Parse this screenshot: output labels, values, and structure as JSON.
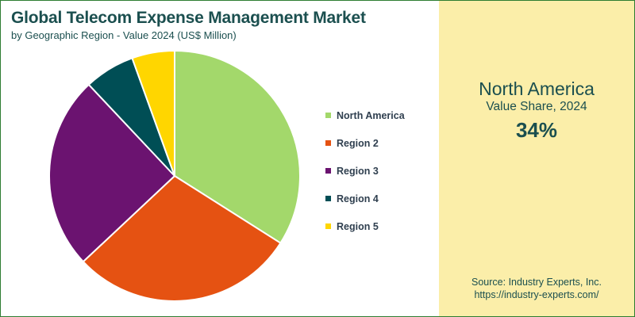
{
  "chart_data": {
    "type": "pie",
    "title": "Global Telecom Expense Management Market",
    "subtitle": "by Geographic Region - Value 2024 (US$ Million)",
    "categories": [
      "North America",
      "Region 2",
      "Region 3",
      "Region 4",
      "Region 5"
    ],
    "values": [
      34,
      29,
      25,
      6.5,
      5.5
    ],
    "colors": [
      "#a3d86b",
      "#e55212",
      "#6b1370",
      "#004e55",
      "#ffd600"
    ],
    "legend_position": "right"
  },
  "highlight": {
    "region": "North America",
    "label": "Value Share, 2024",
    "value": "34%"
  },
  "source": {
    "line1": "Source: Industry Experts, Inc.",
    "line2": "https://industry-experts.com/"
  }
}
